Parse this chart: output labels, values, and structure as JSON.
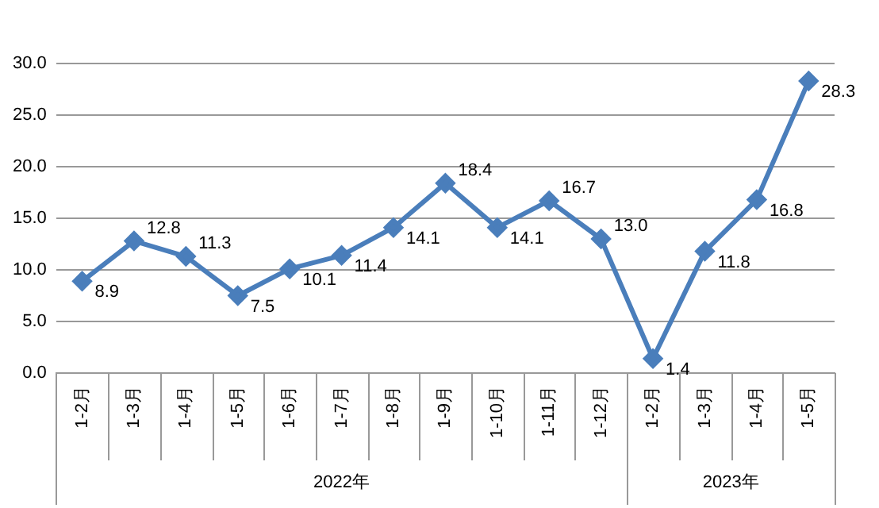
{
  "chart_data": {
    "type": "line",
    "categories": [
      "1-2月",
      "1-3月",
      "1-4月",
      "1-5月",
      "1-6月",
      "1-7月",
      "1-8月",
      "1-9月",
      "1-10月",
      "1-11月",
      "1-12月",
      "1-2月",
      "1-3月",
      "1-4月",
      "1-5月"
    ],
    "series": [
      {
        "color": "#4a7ebb",
        "values": [
          8.9,
          12.8,
          11.3,
          7.5,
          10.1,
          11.4,
          14.1,
          18.4,
          14.1,
          16.7,
          13.0,
          1.4,
          11.8,
          16.8,
          28.3
        ],
        "value_labels": [
          "8.9",
          "12.8",
          "11.3",
          "7.5",
          "10.1",
          "11.4",
          "14.1",
          "18.4",
          "14.1",
          "16.7",
          "13.0",
          "1.4",
          "11.8",
          "16.8",
          "28.3"
        ]
      }
    ],
    "ylim": [
      0,
      30
    ],
    "yticks": [
      {
        "value": 0,
        "label": "0.0"
      },
      {
        "value": 5,
        "label": "5.0"
      },
      {
        "value": 10,
        "label": "10.0"
      },
      {
        "value": 15,
        "label": "15.0"
      },
      {
        "value": 20,
        "label": "20.0"
      },
      {
        "value": 25,
        "label": "25.0"
      },
      {
        "value": 30,
        "label": "30.0"
      }
    ],
    "grid": "y",
    "marker": "diamond",
    "line_style": "solid",
    "annotations": [
      "2022年",
      "2023年"
    ]
  }
}
